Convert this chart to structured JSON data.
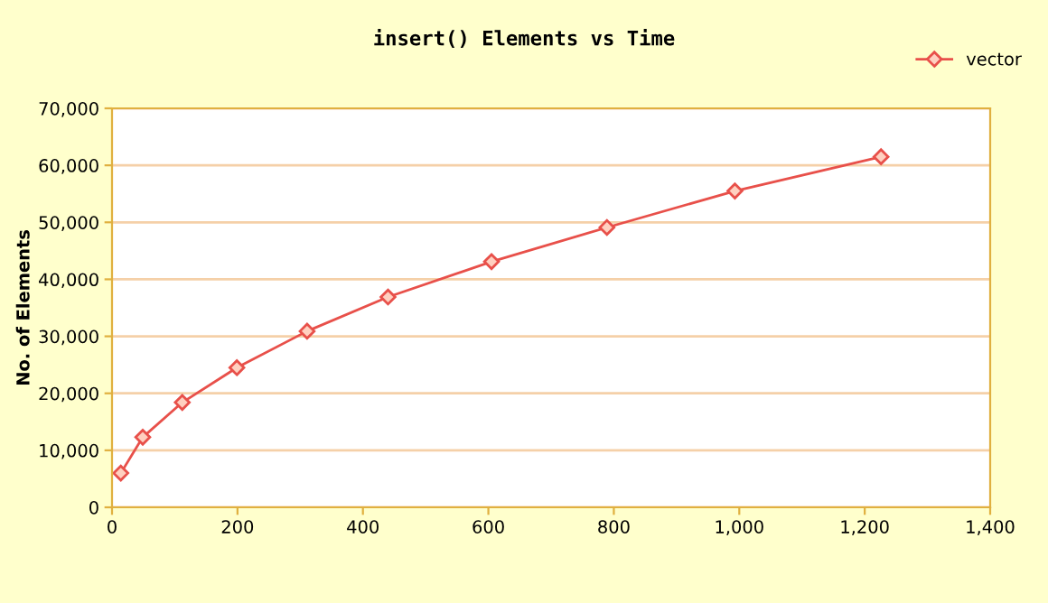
{
  "chart_data": {
    "type": "line",
    "title": "insert() Elements vs Time",
    "ylabel": "No. of Elements",
    "x": [
      14,
      49,
      112,
      199,
      311,
      440,
      605,
      789,
      993,
      1226
    ],
    "series": [
      {
        "name": "vector",
        "color": "#e8504a",
        "values": [
          6000,
          12300,
          18400,
          24500,
          30900,
          36900,
          43100,
          49100,
          55500,
          61500
        ]
      }
    ],
    "xlim": [
      0,
      1400
    ],
    "xticks": [
      {
        "value": 0,
        "label": "0"
      },
      {
        "value": 200,
        "label": "200"
      },
      {
        "value": 400,
        "label": "400"
      },
      {
        "value": 600,
        "label": "600"
      },
      {
        "value": 800,
        "label": "800"
      },
      {
        "value": 1000,
        "label": "1,000"
      },
      {
        "value": 1200,
        "label": "1,200"
      },
      {
        "value": 1400,
        "label": "1,400"
      }
    ],
    "ylim": [
      0,
      70000
    ],
    "yticks": [
      {
        "value": 0,
        "label": "0"
      },
      {
        "value": 10000,
        "label": "10,000"
      },
      {
        "value": 20000,
        "label": "20,000"
      },
      {
        "value": 30000,
        "label": "30,000"
      },
      {
        "value": 40000,
        "label": "40,000"
      },
      {
        "value": 50000,
        "label": "50,000"
      },
      {
        "value": 60000,
        "label": "60,000"
      },
      {
        "value": 70000,
        "label": "70,000"
      }
    ],
    "grid": "y",
    "legend": "top right",
    "marker": "diamond",
    "line_style": "solid"
  }
}
